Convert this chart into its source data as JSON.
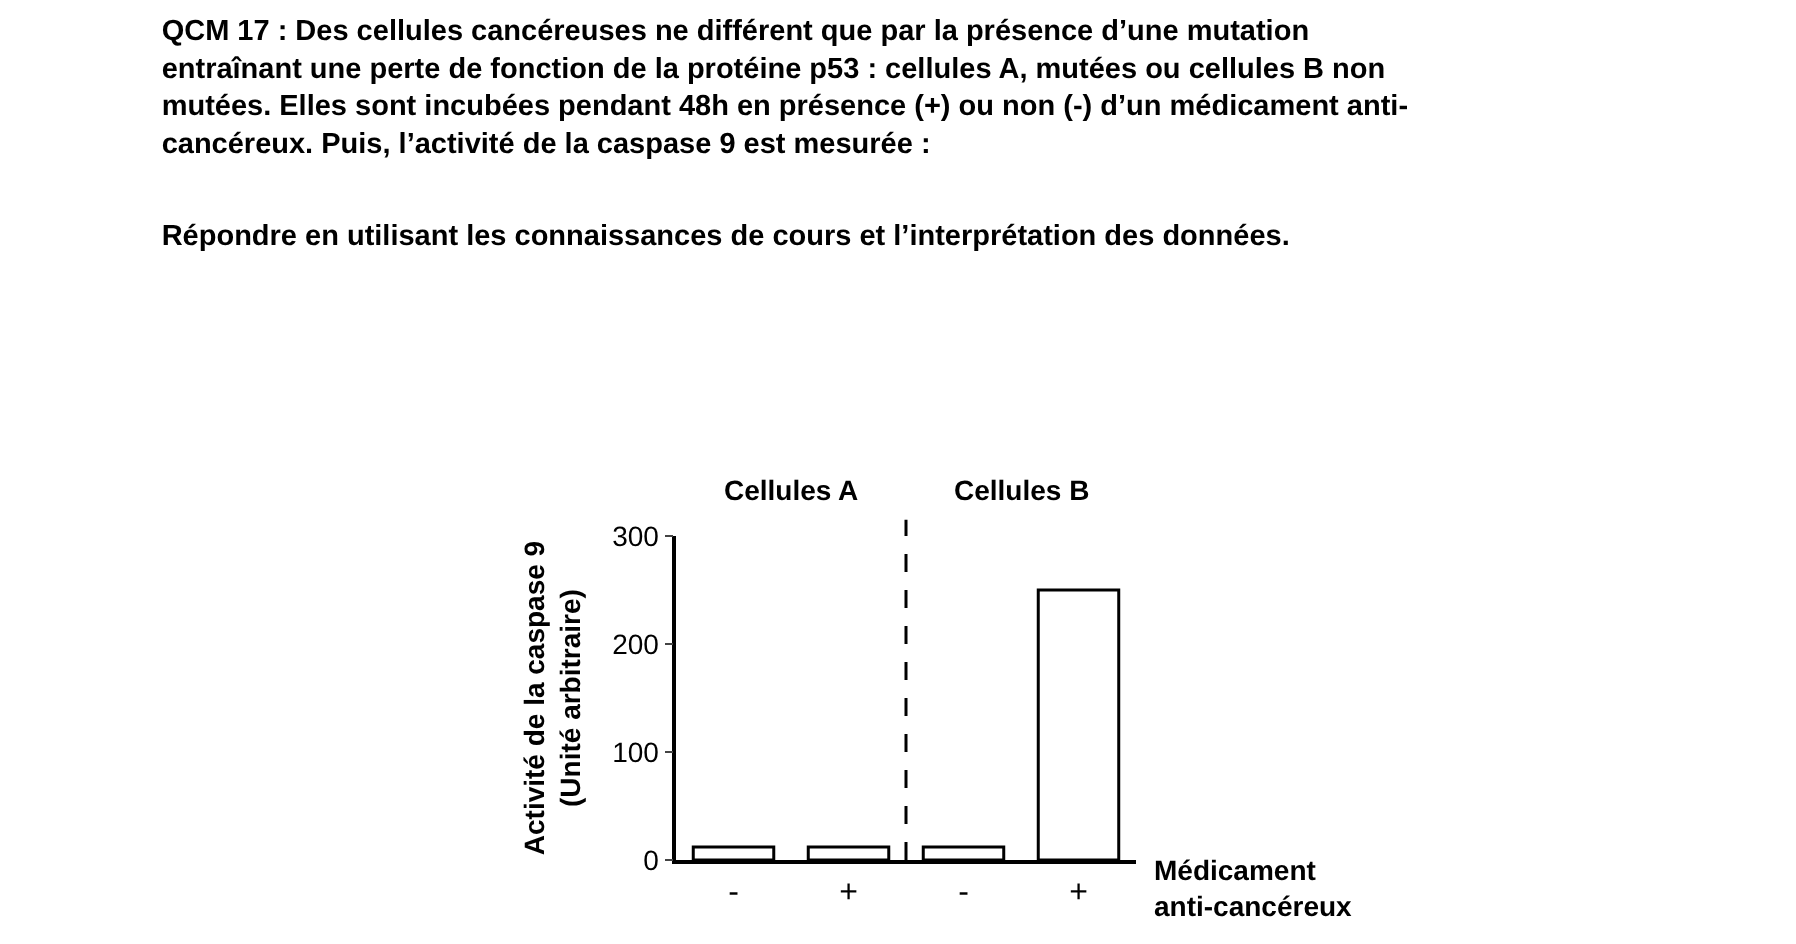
{
  "chart_data": {
    "type": "bar",
    "title": "QCM 17 : Des cellules cancéreuses ne différent que par la présence d’une mutation\nentraînant une perte de fonction de la protéine p53 : cellules A, mutées ou cellules B non\nmutées. Elles sont incubées pendant 48h en présence (+) ou non (-) d’un médicament anti-\ncancéreux. Puis, l’activité de la caspase 9 est mesurée :",
    "subtitle": "Répondre en utilisant les connaissances de cours et l’interprétation des données.",
    "categories": [
      "-",
      "+",
      "-",
      "+"
    ],
    "values": [
      12,
      12,
      12,
      250
    ],
    "color": "#ffffff",
    "ylim": [
      0,
      300
    ],
    "yticks": [
      0,
      100,
      200,
      300
    ],
    "ylabel": "Activité de la caspase 9\n(Unité arbitraire)",
    "xlabel": "Médicament\nanti-cancéreux",
    "annotations": [
      "Cellules A",
      "Cellules B"
    ],
    "legend": false
  }
}
